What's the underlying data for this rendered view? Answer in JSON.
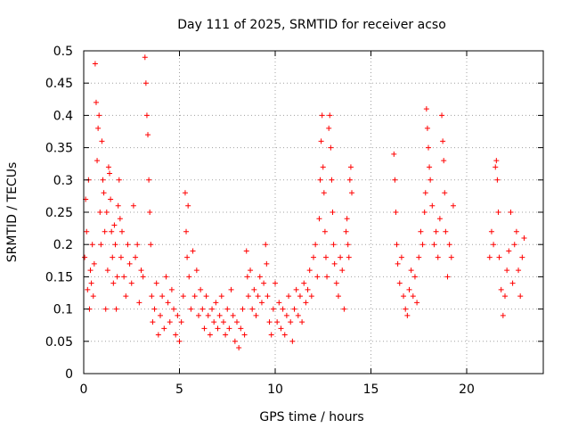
{
  "chart_data": {
    "type": "scatter",
    "title": "Day 111 of 2025, SRMTID for receiver acso",
    "xlabel": "GPS time / hours",
    "ylabel": "SRMTID / TECUs",
    "xlim": [
      0,
      24
    ],
    "ylim": [
      0,
      0.5
    ],
    "x_ticks": [
      0,
      5,
      10,
      15,
      20
    ],
    "x_tick_labels": [
      "0",
      "5",
      "10",
      "15",
      "20"
    ],
    "y_ticks": [
      0,
      0.05,
      0.1,
      0.15,
      0.2,
      0.25,
      0.3,
      0.35,
      0.4,
      0.45,
      0.5
    ],
    "y_tick_labels": [
      "0",
      "0.05",
      "0.1",
      "0.15",
      "0.2",
      "0.25",
      "0.3",
      "0.35",
      "0.4",
      "0.45",
      "0.5"
    ],
    "grid": true,
    "marker": "plus",
    "color": "#ff0000",
    "series": [
      {
        "name": "SRMTID",
        "points": [
          [
            0.05,
            0.18
          ],
          [
            0.1,
            0.27
          ],
          [
            0.15,
            0.22
          ],
          [
            0.2,
            0.13
          ],
          [
            0.25,
            0.3
          ],
          [
            0.3,
            0.1
          ],
          [
            0.35,
            0.16
          ],
          [
            0.4,
            0.14
          ],
          [
            0.45,
            0.2
          ],
          [
            0.5,
            0.12
          ],
          [
            0.55,
            0.17
          ],
          [
            0.6,
            0.48
          ],
          [
            0.65,
            0.42
          ],
          [
            0.7,
            0.33
          ],
          [
            0.75,
            0.38
          ],
          [
            0.8,
            0.4
          ],
          [
            0.85,
            0.25
          ],
          [
            0.9,
            0.2
          ],
          [
            0.95,
            0.36
          ],
          [
            1.0,
            0.3
          ],
          [
            1.05,
            0.28
          ],
          [
            1.1,
            0.22
          ],
          [
            1.15,
            0.1
          ],
          [
            1.2,
            0.25
          ],
          [
            1.25,
            0.16
          ],
          [
            1.3,
            0.32
          ],
          [
            1.35,
            0.31
          ],
          [
            1.4,
            0.27
          ],
          [
            1.45,
            0.22
          ],
          [
            1.5,
            0.18
          ],
          [
            1.55,
            0.14
          ],
          [
            1.6,
            0.23
          ],
          [
            1.65,
            0.2
          ],
          [
            1.7,
            0.1
          ],
          [
            1.75,
            0.15
          ],
          [
            1.8,
            0.26
          ],
          [
            1.85,
            0.3
          ],
          [
            1.9,
            0.24
          ],
          [
            1.95,
            0.18
          ],
          [
            2.0,
            0.22
          ],
          [
            2.1,
            0.15
          ],
          [
            2.2,
            0.12
          ],
          [
            2.3,
            0.2
          ],
          [
            2.4,
            0.17
          ],
          [
            2.5,
            0.14
          ],
          [
            2.6,
            0.26
          ],
          [
            2.7,
            0.18
          ],
          [
            2.8,
            0.2
          ],
          [
            2.9,
            0.11
          ],
          [
            3.0,
            0.16
          ],
          [
            3.1,
            0.15
          ],
          [
            3.2,
            0.49
          ],
          [
            3.25,
            0.45
          ],
          [
            3.3,
            0.4
          ],
          [
            3.35,
            0.37
          ],
          [
            3.4,
            0.3
          ],
          [
            3.45,
            0.25
          ],
          [
            3.5,
            0.2
          ],
          [
            3.55,
            0.12
          ],
          [
            3.6,
            0.08
          ],
          [
            3.7,
            0.1
          ],
          [
            3.8,
            0.14
          ],
          [
            3.9,
            0.06
          ],
          [
            4.0,
            0.09
          ],
          [
            4.1,
            0.12
          ],
          [
            4.2,
            0.07
          ],
          [
            4.3,
            0.15
          ],
          [
            4.4,
            0.11
          ],
          [
            4.5,
            0.08
          ],
          [
            4.6,
            0.13
          ],
          [
            4.7,
            0.1
          ],
          [
            4.8,
            0.06
          ],
          [
            4.9,
            0.09
          ],
          [
            5.0,
            0.05
          ],
          [
            5.1,
            0.08
          ],
          [
            5.2,
            0.12
          ],
          [
            5.3,
            0.28
          ],
          [
            5.35,
            0.22
          ],
          [
            5.4,
            0.18
          ],
          [
            5.45,
            0.26
          ],
          [
            5.5,
            0.15
          ],
          [
            5.6,
            0.1
          ],
          [
            5.7,
            0.19
          ],
          [
            5.8,
            0.12
          ],
          [
            5.9,
            0.16
          ],
          [
            6.0,
            0.09
          ],
          [
            6.1,
            0.13
          ],
          [
            6.2,
            0.1
          ],
          [
            6.3,
            0.07
          ],
          [
            6.4,
            0.12
          ],
          [
            6.5,
            0.09
          ],
          [
            6.6,
            0.06
          ],
          [
            6.7,
            0.1
          ],
          [
            6.8,
            0.08
          ],
          [
            6.9,
            0.11
          ],
          [
            7.0,
            0.07
          ],
          [
            7.1,
            0.09
          ],
          [
            7.2,
            0.12
          ],
          [
            7.3,
            0.08
          ],
          [
            7.4,
            0.06
          ],
          [
            7.5,
            0.1
          ],
          [
            7.6,
            0.07
          ],
          [
            7.7,
            0.13
          ],
          [
            7.8,
            0.09
          ],
          [
            7.9,
            0.05
          ],
          [
            8.0,
            0.08
          ],
          [
            8.1,
            0.04
          ],
          [
            8.2,
            0.07
          ],
          [
            8.3,
            0.1
          ],
          [
            8.4,
            0.06
          ],
          [
            8.5,
            0.19
          ],
          [
            8.55,
            0.15
          ],
          [
            8.6,
            0.12
          ],
          [
            8.7,
            0.16
          ],
          [
            8.8,
            0.1
          ],
          [
            8.9,
            0.13
          ],
          [
            9.0,
            0.09
          ],
          [
            9.1,
            0.12
          ],
          [
            9.2,
            0.15
          ],
          [
            9.3,
            0.11
          ],
          [
            9.4,
            0.14
          ],
          [
            9.5,
            0.2
          ],
          [
            9.55,
            0.17
          ],
          [
            9.6,
            0.12
          ],
          [
            9.7,
            0.08
          ],
          [
            9.8,
            0.06
          ],
          [
            9.9,
            0.1
          ],
          [
            10.0,
            0.14
          ],
          [
            10.1,
            0.08
          ],
          [
            10.2,
            0.11
          ],
          [
            10.3,
            0.07
          ],
          [
            10.4,
            0.1
          ],
          [
            10.5,
            0.06
          ],
          [
            10.6,
            0.09
          ],
          [
            10.7,
            0.12
          ],
          [
            10.8,
            0.08
          ],
          [
            10.9,
            0.05
          ],
          [
            11.0,
            0.1
          ],
          [
            11.1,
            0.13
          ],
          [
            11.2,
            0.09
          ],
          [
            11.3,
            0.12
          ],
          [
            11.4,
            0.08
          ],
          [
            11.5,
            0.14
          ],
          [
            11.6,
            0.11
          ],
          [
            11.7,
            0.13
          ],
          [
            11.8,
            0.16
          ],
          [
            11.9,
            0.12
          ],
          [
            12.0,
            0.18
          ],
          [
            12.1,
            0.2
          ],
          [
            12.2,
            0.15
          ],
          [
            12.3,
            0.24
          ],
          [
            12.35,
            0.3
          ],
          [
            12.4,
            0.36
          ],
          [
            12.45,
            0.4
          ],
          [
            12.5,
            0.32
          ],
          [
            12.55,
            0.28
          ],
          [
            12.6,
            0.22
          ],
          [
            12.65,
            0.18
          ],
          [
            12.7,
            0.15
          ],
          [
            12.8,
            0.38
          ],
          [
            12.85,
            0.4
          ],
          [
            12.9,
            0.35
          ],
          [
            12.95,
            0.3
          ],
          [
            13.0,
            0.25
          ],
          [
            13.05,
            0.2
          ],
          [
            13.1,
            0.17
          ],
          [
            13.2,
            0.14
          ],
          [
            13.3,
            0.12
          ],
          [
            13.4,
            0.18
          ],
          [
            13.5,
            0.16
          ],
          [
            13.6,
            0.1
          ],
          [
            13.7,
            0.22
          ],
          [
            13.75,
            0.24
          ],
          [
            13.8,
            0.2
          ],
          [
            13.85,
            0.18
          ],
          [
            13.9,
            0.3
          ],
          [
            13.95,
            0.32
          ],
          [
            14.0,
            0.28
          ],
          [
            16.2,
            0.34
          ],
          [
            16.25,
            0.3
          ],
          [
            16.3,
            0.25
          ],
          [
            16.35,
            0.2
          ],
          [
            16.4,
            0.17
          ],
          [
            16.5,
            0.14
          ],
          [
            16.6,
            0.18
          ],
          [
            16.7,
            0.12
          ],
          [
            16.8,
            0.1
          ],
          [
            16.9,
            0.09
          ],
          [
            17.0,
            0.13
          ],
          [
            17.1,
            0.16
          ],
          [
            17.2,
            0.12
          ],
          [
            17.3,
            0.15
          ],
          [
            17.4,
            0.11
          ],
          [
            17.5,
            0.18
          ],
          [
            17.6,
            0.22
          ],
          [
            17.7,
            0.2
          ],
          [
            17.8,
            0.25
          ],
          [
            17.85,
            0.28
          ],
          [
            17.9,
            0.41
          ],
          [
            17.95,
            0.38
          ],
          [
            18.0,
            0.35
          ],
          [
            18.05,
            0.32
          ],
          [
            18.1,
            0.3
          ],
          [
            18.2,
            0.26
          ],
          [
            18.3,
            0.2
          ],
          [
            18.4,
            0.22
          ],
          [
            18.5,
            0.18
          ],
          [
            18.6,
            0.24
          ],
          [
            18.7,
            0.4
          ],
          [
            18.75,
            0.36
          ],
          [
            18.8,
            0.33
          ],
          [
            18.85,
            0.28
          ],
          [
            18.9,
            0.22
          ],
          [
            19.0,
            0.15
          ],
          [
            19.1,
            0.2
          ],
          [
            19.2,
            0.18
          ],
          [
            19.3,
            0.26
          ],
          [
            21.2,
            0.18
          ],
          [
            21.3,
            0.22
          ],
          [
            21.4,
            0.2
          ],
          [
            21.5,
            0.32
          ],
          [
            21.55,
            0.33
          ],
          [
            21.6,
            0.3
          ],
          [
            21.65,
            0.25
          ],
          [
            21.7,
            0.18
          ],
          [
            21.8,
            0.13
          ],
          [
            21.9,
            0.09
          ],
          [
            22.0,
            0.12
          ],
          [
            22.1,
            0.16
          ],
          [
            22.2,
            0.19
          ],
          [
            22.3,
            0.25
          ],
          [
            22.4,
            0.14
          ],
          [
            22.5,
            0.2
          ],
          [
            22.6,
            0.22
          ],
          [
            22.7,
            0.16
          ],
          [
            22.8,
            0.12
          ],
          [
            22.9,
            0.18
          ],
          [
            23.0,
            0.21
          ]
        ]
      }
    ]
  }
}
